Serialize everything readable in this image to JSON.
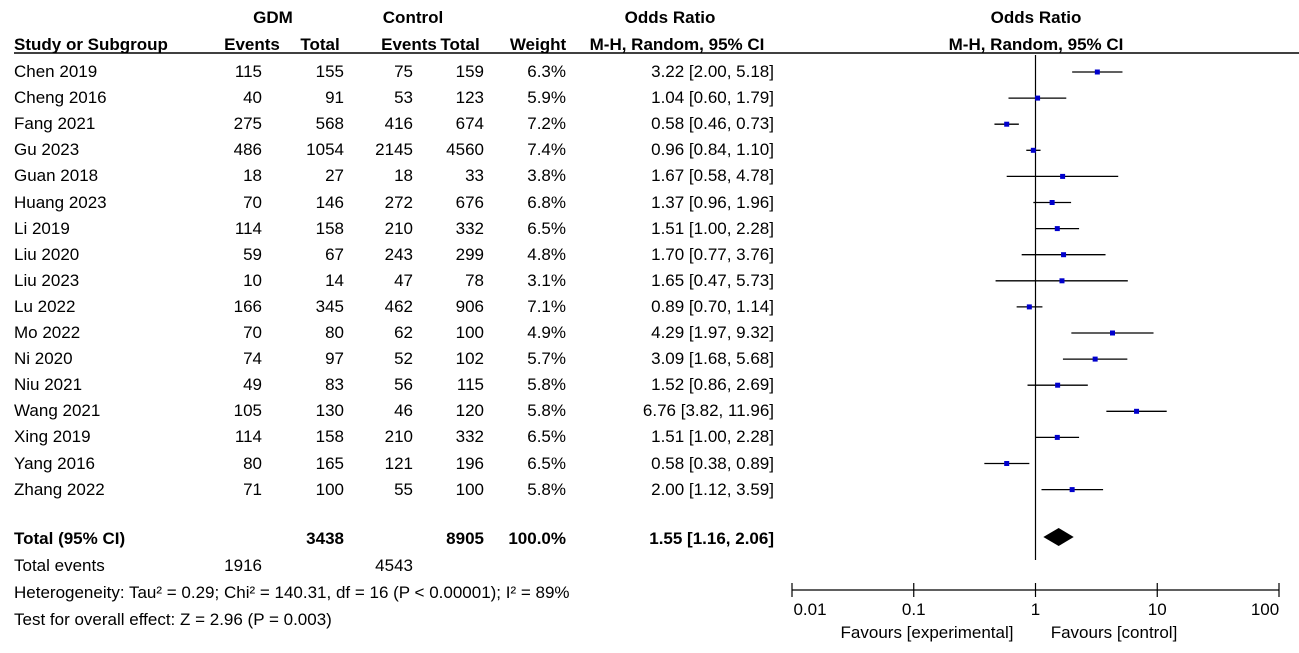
{
  "header": {
    "gdm_group": "GDM",
    "control_group": "Control",
    "odds_ratio": "Odds Ratio",
    "study_col": "Study or Subgroup",
    "events_col": "Events",
    "total_col": "Total",
    "weight_col": "Weight",
    "method": "M-H, Random, 95% CI",
    "plot_title": "Odds Ratio",
    "plot_method": "M-H, Random, 95% CI"
  },
  "chart_data": {
    "type": "forest",
    "x_scale": "log",
    "xlim": [
      0.01,
      100
    ],
    "ticks": [
      "0.01",
      "0.1",
      "1",
      "10",
      "100"
    ],
    "tick_values": [
      0.01,
      0.1,
      1,
      10,
      100
    ],
    "label_left": "Favours [experimental]",
    "label_right": "Favours [control]",
    "studies": [
      {
        "name": "Chen 2019",
        "gdm_events": "115",
        "gdm_total": "155",
        "ctrl_events": "75",
        "ctrl_total": "159",
        "weight": "6.3%",
        "ci_text": "3.22 [2.00, 5.18]",
        "or": 3.22,
        "lo": 2.0,
        "hi": 5.18
      },
      {
        "name": "Cheng 2016",
        "gdm_events": "40",
        "gdm_total": "91",
        "ctrl_events": "53",
        "ctrl_total": "123",
        "weight": "5.9%",
        "ci_text": "1.04 [0.60, 1.79]",
        "or": 1.04,
        "lo": 0.6,
        "hi": 1.79
      },
      {
        "name": "Fang 2021",
        "gdm_events": "275",
        "gdm_total": "568",
        "ctrl_events": "416",
        "ctrl_total": "674",
        "weight": "7.2%",
        "ci_text": "0.58 [0.46, 0.73]",
        "or": 0.58,
        "lo": 0.46,
        "hi": 0.73
      },
      {
        "name": "Gu 2023",
        "gdm_events": "486",
        "gdm_total": "1054",
        "ctrl_events": "2145",
        "ctrl_total": "4560",
        "weight": "7.4%",
        "ci_text": "0.96 [0.84, 1.10]",
        "or": 0.96,
        "lo": 0.84,
        "hi": 1.1
      },
      {
        "name": "Guan 2018",
        "gdm_events": "18",
        "gdm_total": "27",
        "ctrl_events": "18",
        "ctrl_total": "33",
        "weight": "3.8%",
        "ci_text": "1.67 [0.58, 4.78]",
        "or": 1.67,
        "lo": 0.58,
        "hi": 4.78
      },
      {
        "name": "Huang 2023",
        "gdm_events": "70",
        "gdm_total": "146",
        "ctrl_events": "272",
        "ctrl_total": "676",
        "weight": "6.8%",
        "ci_text": "1.37 [0.96, 1.96]",
        "or": 1.37,
        "lo": 0.96,
        "hi": 1.96
      },
      {
        "name": "Li 2019",
        "gdm_events": "114",
        "gdm_total": "158",
        "ctrl_events": "210",
        "ctrl_total": "332",
        "weight": "6.5%",
        "ci_text": "1.51 [1.00, 2.28]",
        "or": 1.51,
        "lo": 1.0,
        "hi": 2.28
      },
      {
        "name": "Liu 2020",
        "gdm_events": "59",
        "gdm_total": "67",
        "ctrl_events": "243",
        "ctrl_total": "299",
        "weight": "4.8%",
        "ci_text": "1.70 [0.77, 3.76]",
        "or": 1.7,
        "lo": 0.77,
        "hi": 3.76
      },
      {
        "name": "Liu 2023",
        "gdm_events": "10",
        "gdm_total": "14",
        "ctrl_events": "47",
        "ctrl_total": "78",
        "weight": "3.1%",
        "ci_text": "1.65 [0.47, 5.73]",
        "or": 1.65,
        "lo": 0.47,
        "hi": 5.73
      },
      {
        "name": "Lu 2022",
        "gdm_events": "166",
        "gdm_total": "345",
        "ctrl_events": "462",
        "ctrl_total": "906",
        "weight": "7.1%",
        "ci_text": "0.89 [0.70, 1.14]",
        "or": 0.89,
        "lo": 0.7,
        "hi": 1.14
      },
      {
        "name": "Mo 2022",
        "gdm_events": "70",
        "gdm_total": "80",
        "ctrl_events": "62",
        "ctrl_total": "100",
        "weight": "4.9%",
        "ci_text": "4.29 [1.97, 9.32]",
        "or": 4.29,
        "lo": 1.97,
        "hi": 9.32
      },
      {
        "name": "Ni 2020",
        "gdm_events": "74",
        "gdm_total": "97",
        "ctrl_events": "52",
        "ctrl_total": "102",
        "weight": "5.7%",
        "ci_text": "3.09 [1.68, 5.68]",
        "or": 3.09,
        "lo": 1.68,
        "hi": 5.68
      },
      {
        "name": "Niu 2021",
        "gdm_events": "49",
        "gdm_total": "83",
        "ctrl_events": "56",
        "ctrl_total": "115",
        "weight": "5.8%",
        "ci_text": "1.52 [0.86, 2.69]",
        "or": 1.52,
        "lo": 0.86,
        "hi": 2.69
      },
      {
        "name": "Wang 2021",
        "gdm_events": "105",
        "gdm_total": "130",
        "ctrl_events": "46",
        "ctrl_total": "120",
        "weight": "5.8%",
        "ci_text": "6.76 [3.82, 11.96]",
        "or": 6.76,
        "lo": 3.82,
        "hi": 11.96
      },
      {
        "name": "Xing 2019",
        "gdm_events": "114",
        "gdm_total": "158",
        "ctrl_events": "210",
        "ctrl_total": "332",
        "weight": "6.5%",
        "ci_text": "1.51 [1.00, 2.28]",
        "or": 1.51,
        "lo": 1.0,
        "hi": 2.28
      },
      {
        "name": "Yang 2016",
        "gdm_events": "80",
        "gdm_total": "165",
        "ctrl_events": "121",
        "ctrl_total": "196",
        "weight": "6.5%",
        "ci_text": "0.58 [0.38, 0.89]",
        "or": 0.58,
        "lo": 0.38,
        "hi": 0.89
      },
      {
        "name": "Zhang 2022",
        "gdm_events": "71",
        "gdm_total": "100",
        "ctrl_events": "55",
        "ctrl_total": "100",
        "weight": "5.8%",
        "ci_text": "2.00 [1.12, 3.59]",
        "or": 2.0,
        "lo": 1.12,
        "hi": 3.59
      }
    ],
    "total": {
      "label": "Total (95% CI)",
      "gdm_total": "3438",
      "ctrl_total": "8905",
      "weight": "100.0%",
      "ci_text": "1.55 [1.16, 2.06]",
      "or": 1.55,
      "lo": 1.16,
      "hi": 2.06
    },
    "colors": {
      "point": "#0000cc",
      "line": "#000000",
      "diamond": "#000000"
    }
  },
  "footer": {
    "total_events_label": "Total events",
    "gdm_events": "1916",
    "ctrl_events": "4543",
    "heterogeneity": "Heterogeneity: Tau² = 0.29; Chi² = 140.31, df = 16 (P < 0.00001); I² = 89%",
    "overall_effect": "Test for overall effect: Z = 2.96 (P = 0.003)"
  }
}
